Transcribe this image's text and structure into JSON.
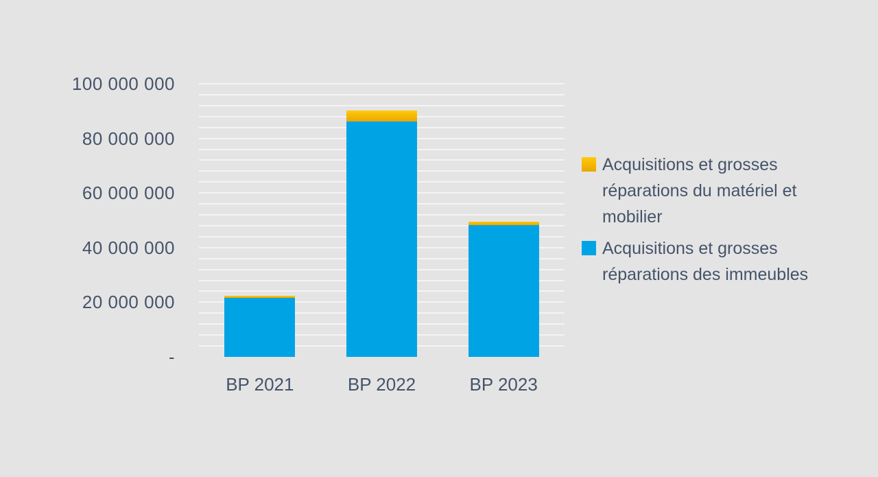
{
  "background_color": "#E5E4E4",
  "chart_data": {
    "type": "bar",
    "stacked": true,
    "title": "",
    "categories": [
      "BP 2021",
      "BP 2022",
      "BP 2023"
    ],
    "series": [
      {
        "name": "Acquisitions et grosses réparations du matériel et mobilier",
        "color": "#FFC000",
        "gradient": [
          "#FFCA0C",
          "#E9A600"
        ],
        "values": [
          650000,
          3900000,
          1400000
        ]
      },
      {
        "name": "Acquisitions et grosses réparations des immeubles",
        "color": "#00A4E5",
        "values": [
          21700000,
          86300000,
          48200000
        ]
      }
    ],
    "ylim": [
      0,
      100000000
    ],
    "ytick_interval": 20000000,
    "minor_gridline_interval": 4000000,
    "yticks": [
      "100 000 000",
      "80 000 000",
      "60 000 000",
      "40 000 000",
      "20 000 000",
      "-"
    ],
    "legend_position": "right",
    "grid": true,
    "gridline_color": "rgba(255, 255, 255, 0.6)",
    "text_color": "#44546A"
  }
}
